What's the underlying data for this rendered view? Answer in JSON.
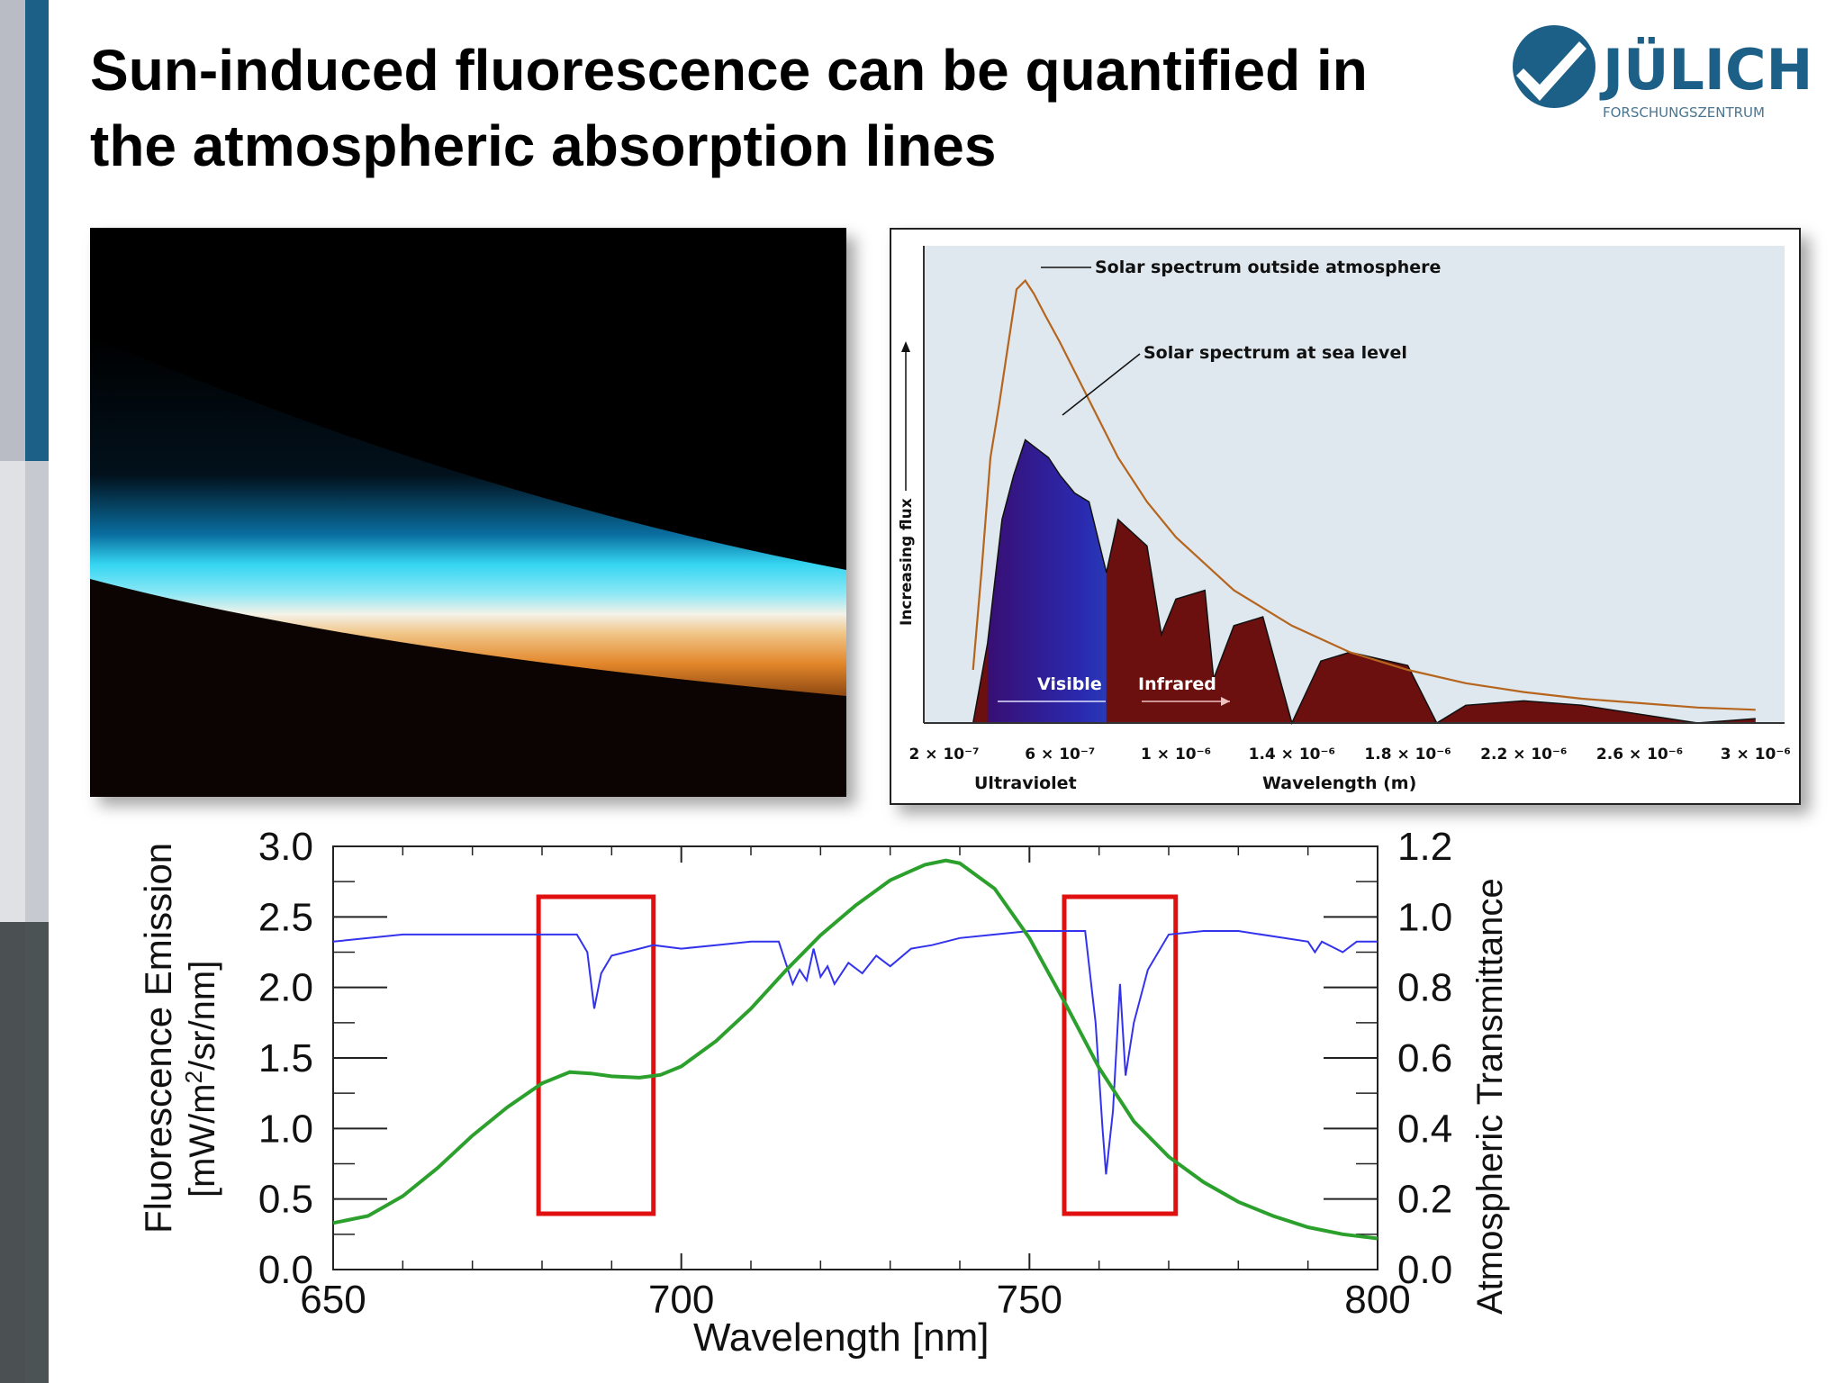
{
  "slide": {
    "title_line1": "Sun-induced fluorescence can be quantified in",
    "title_line2": "the atmospheric absorption lines"
  },
  "logo": {
    "name": "JÜLICH",
    "sub": "FORSCHUNGSZENTRUM",
    "color": "#1c5f87"
  },
  "colors": {
    "fluorescence": "#2ca02c",
    "transmittance": "#3333ee",
    "highlight": "#e01010",
    "outside_atmosphere": "#b5651d",
    "spectrum_bg": "#dfe8ee",
    "absorption_band": "#6b0f0f"
  },
  "chart_data": [
    {
      "type": "area",
      "chart_id": "solar-spectrum",
      "ylabel": "Increasing flux",
      "xlabel": "Wavelength (m)",
      "tick_labels": [
        "2 × 10⁻⁷",
        "6 × 10⁻⁷",
        "1 × 10⁻⁶",
        "1.4 × 10⁻⁶",
        "1.8 × 10⁻⁶",
        "2.2 × 10⁻⁶",
        "2.6 × 10⁻⁶",
        "3 × 10⁻⁶"
      ],
      "tick_values": [
        2e-07,
        6e-07,
        1e-06,
        1.4e-06,
        1.8e-06,
        2.2e-06,
        2.6e-06,
        3e-06
      ],
      "xlim": [
        1.3e-07,
        3.1e-06
      ],
      "ylim": [
        0,
        1.05
      ],
      "annotations": {
        "outside": "Solar spectrum outside atmosphere",
        "sea_level": "Solar spectrum at sea level",
        "visible": "Visible",
        "infrared": "Infrared",
        "ultraviolet": "Ultraviolet"
      },
      "series": [
        {
          "name": "Solar spectrum outside atmosphere",
          "x": [
            3e-07,
            3.3e-07,
            3.6e-07,
            3.9e-07,
            4.2e-07,
            4.5e-07,
            4.8e-07,
            5.1e-07,
            5.5e-07,
            6e-07,
            7e-07,
            8e-07,
            9e-07,
            1e-06,
            1.2e-06,
            1.4e-06,
            1.6e-06,
            1.8e-06,
            2e-06,
            2.2e-06,
            2.4e-06,
            2.6e-06,
            2.8e-06,
            3e-06
          ],
          "y": [
            0.12,
            0.35,
            0.6,
            0.72,
            0.85,
            0.98,
            1.0,
            0.97,
            0.92,
            0.86,
            0.73,
            0.6,
            0.5,
            0.42,
            0.3,
            0.22,
            0.16,
            0.12,
            0.09,
            0.07,
            0.055,
            0.045,
            0.035,
            0.03
          ]
        },
        {
          "name": "Solar spectrum at sea level",
          "x": [
            3e-07,
            3.5e-07,
            4e-07,
            4.4e-07,
            4.8e-07,
            5.2e-07,
            5.6e-07,
            6e-07,
            6.5e-07,
            7e-07,
            7.6e-07,
            8e-07,
            9e-07,
            9.5e-07,
            1e-06,
            1.1e-06,
            1.13e-06,
            1.2e-06,
            1.3e-06,
            1.4e-06,
            1.5e-06,
            1.6e-06,
            1.8e-06,
            1.9e-06,
            2e-06,
            2.2e-06,
            2.4e-06,
            2.6e-06,
            2.8e-06,
            3e-06
          ],
          "y": [
            0.0,
            0.18,
            0.46,
            0.56,
            0.64,
            0.62,
            0.6,
            0.56,
            0.52,
            0.5,
            0.34,
            0.46,
            0.4,
            0.2,
            0.28,
            0.3,
            0.1,
            0.22,
            0.24,
            0.0,
            0.14,
            0.16,
            0.13,
            0.0,
            0.04,
            0.05,
            0.04,
            0.02,
            0.0,
            0.01
          ]
        }
      ]
    },
    {
      "type": "line",
      "chart_id": "fluorescence-transmittance",
      "xlabel": "Wavelength [nm]",
      "ylabel_line1": "Fluorescence Emission",
      "ylabel_line2": "[mW/m",
      "ylabel_sup": "2",
      "ylabel_line3": "/sr/nm]",
      "y2label": "Atmospheric Transmittance",
      "xlim": [
        650,
        800
      ],
      "ylim": [
        0,
        3.0
      ],
      "y2lim": [
        0,
        1.2
      ],
      "xticks": [
        "650",
        "700",
        "750",
        "800"
      ],
      "yticks": [
        "0.0",
        "0.5",
        "1.0",
        "1.5",
        "2.0",
        "2.5",
        "3.0"
      ],
      "y2ticks": [
        "0.0",
        "0.2",
        "0.4",
        "0.6",
        "0.8",
        "1.0",
        "1.2"
      ],
      "highlight_ranges_nm": [
        [
          679.5,
          696
        ],
        [
          755,
          771
        ]
      ],
      "series": [
        {
          "axis": "left",
          "x": [
            650,
            655,
            660,
            665,
            670,
            675,
            680,
            684,
            687,
            690,
            694,
            697,
            700,
            705,
            710,
            715,
            720,
            725,
            730,
            735,
            738,
            740,
            745,
            750,
            755,
            760,
            765,
            770,
            775,
            780,
            785,
            790,
            795,
            800
          ],
          "y": [
            0.33,
            0.38,
            0.52,
            0.72,
            0.95,
            1.15,
            1.32,
            1.4,
            1.39,
            1.37,
            1.36,
            1.38,
            1.44,
            1.62,
            1.85,
            2.12,
            2.37,
            2.58,
            2.76,
            2.87,
            2.9,
            2.88,
            2.7,
            2.35,
            1.9,
            1.43,
            1.05,
            0.8,
            0.62,
            0.48,
            0.38,
            0.3,
            0.25,
            0.22
          ]
        },
        {
          "axis": "right",
          "x": [
            650,
            660,
            670,
            680,
            685,
            686.5,
            687.5,
            688.5,
            690,
            692,
            694,
            696,
            700,
            705,
            710,
            714,
            716,
            717,
            718,
            719,
            720,
            721,
            722,
            724,
            726,
            728,
            730,
            733,
            736,
            740,
            745,
            750,
            755,
            758,
            759.5,
            760.5,
            761,
            762,
            763,
            763.8,
            765,
            767,
            770,
            775,
            780,
            790,
            791,
            792,
            795,
            797,
            800
          ],
          "y": [
            0.93,
            0.95,
            0.95,
            0.95,
            0.95,
            0.9,
            0.74,
            0.84,
            0.89,
            0.9,
            0.91,
            0.92,
            0.91,
            0.92,
            0.93,
            0.93,
            0.81,
            0.85,
            0.82,
            0.91,
            0.83,
            0.86,
            0.81,
            0.87,
            0.84,
            0.89,
            0.86,
            0.91,
            0.92,
            0.94,
            0.95,
            0.96,
            0.96,
            0.96,
            0.7,
            0.4,
            0.27,
            0.45,
            0.81,
            0.55,
            0.7,
            0.85,
            0.95,
            0.96,
            0.96,
            0.93,
            0.9,
            0.93,
            0.9,
            0.93,
            0.93
          ]
        }
      ]
    }
  ]
}
